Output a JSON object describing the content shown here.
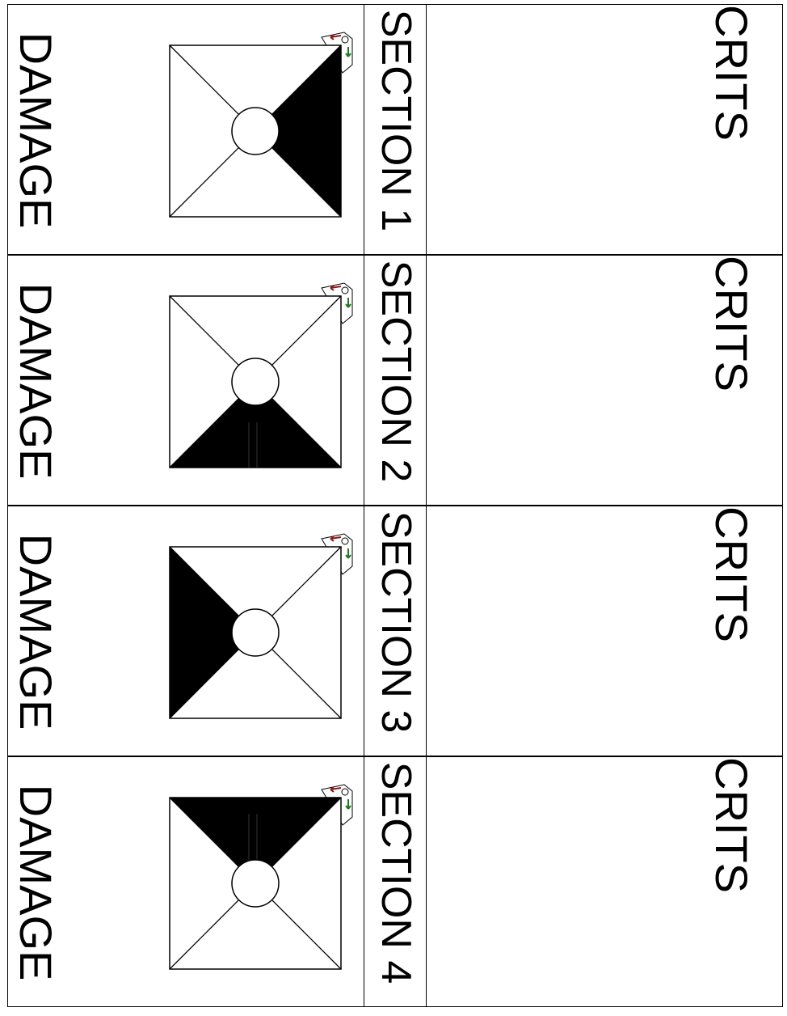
{
  "rows": [
    {
      "damage_label": "DAMAGE",
      "section_label": "SECTION 1",
      "crits_label": "CRITS",
      "shaded_wedge": "right"
    },
    {
      "damage_label": "DAMAGE",
      "section_label": "SECTION 2",
      "crits_label": "CRITS",
      "shaded_wedge": "bottom"
    },
    {
      "damage_label": "DAMAGE",
      "section_label": "SECTION 3",
      "crits_label": "CRITS",
      "shaded_wedge": "left"
    },
    {
      "damage_label": "DAMAGE",
      "section_label": "SECTION 4",
      "crits_label": "CRITS",
      "shaded_wedge": "top"
    }
  ],
  "icons": {
    "wedge_diagram": "square-quadrant-diagram-icon",
    "corner_tag": "anchor-arrows-icon"
  },
  "colors": {
    "ink": "#000000",
    "paper": "#ffffff",
    "arrow_red": "#8b1a1a",
    "arrow_green": "#1f7a1f"
  }
}
